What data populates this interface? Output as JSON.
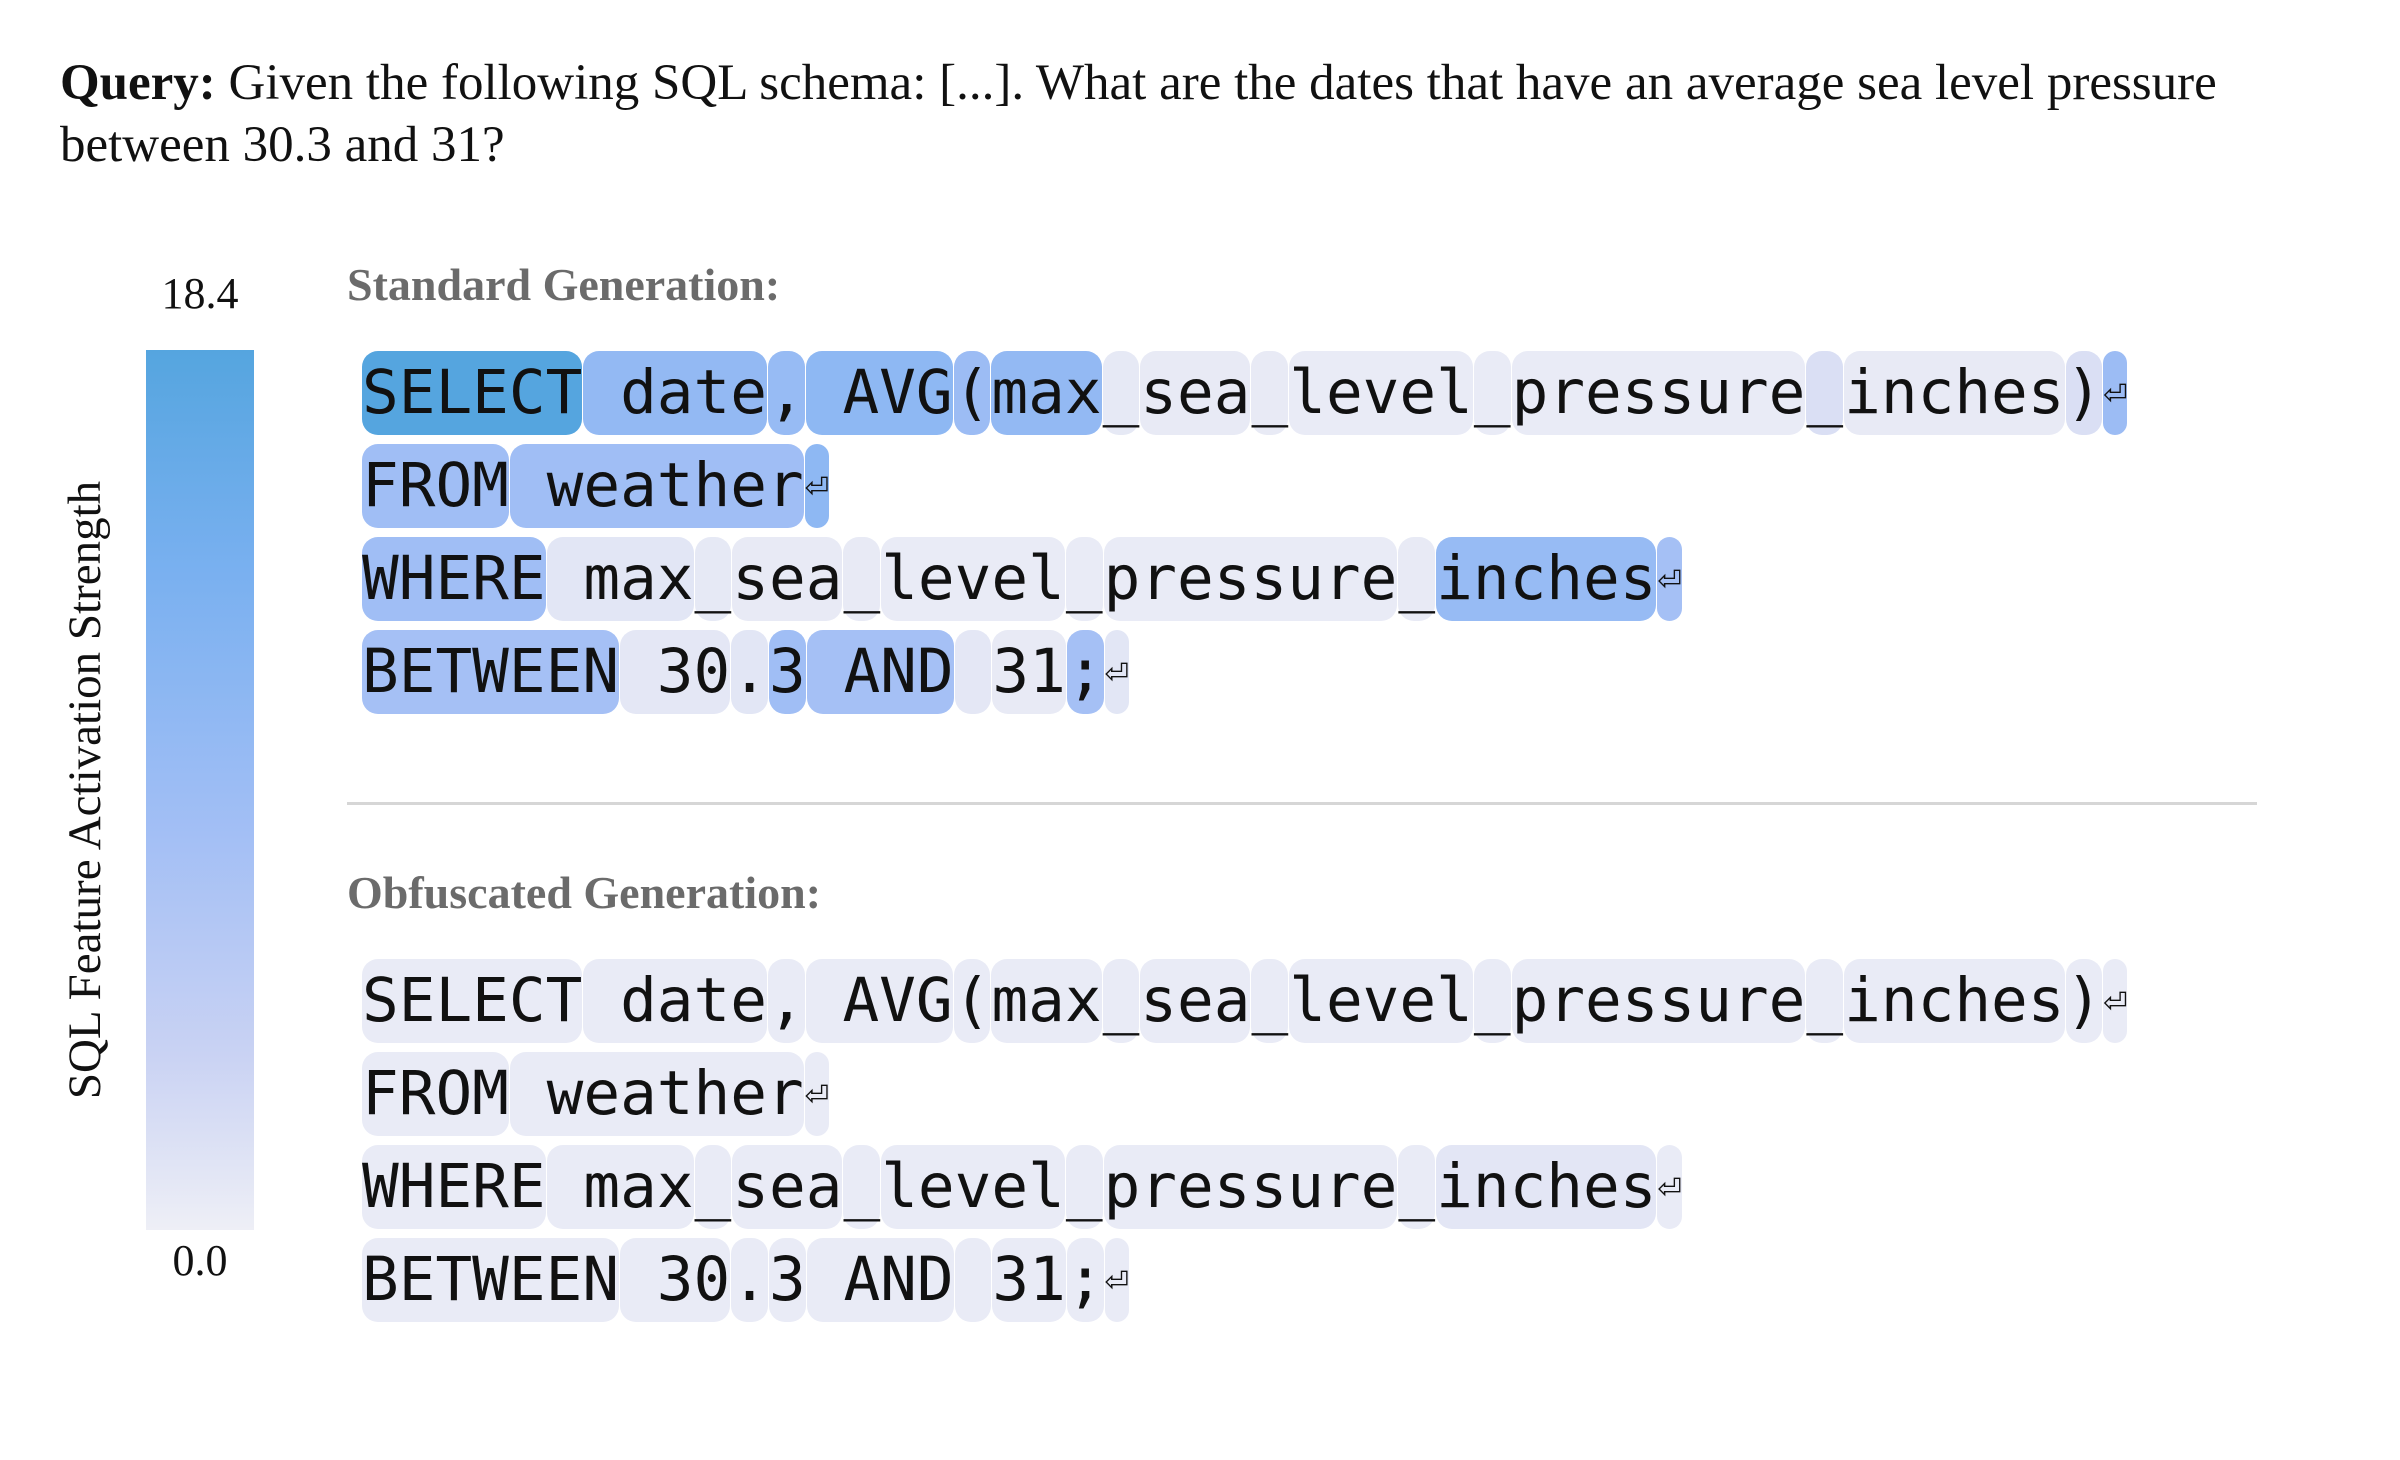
{
  "query": {
    "label": "Query:",
    "text": " Given the following SQL schema: [...]. What are the dates that have an average sea level pressure between 30.3 and 31?"
  },
  "colorbar": {
    "max_label": "18.4",
    "min_label": "0.0",
    "title": "SQL Feature Activation Strength",
    "colors": [
      "#55a5df",
      "#79b0f0",
      "#a3bff5",
      "#c9d2f3",
      "#eeeff6"
    ]
  },
  "standard": {
    "title": "Standard Generation:",
    "lines": [
      [
        [
          "SELECT",
          18.4
        ],
        [
          " date",
          11
        ],
        [
          ",",
          10.5
        ],
        [
          " AVG",
          11.5
        ],
        [
          "(",
          10
        ],
        [
          "max",
          11
        ],
        [
          "_",
          1
        ],
        [
          "sea",
          0.8
        ],
        [
          "_",
          0.8
        ],
        [
          "level",
          0.6
        ],
        [
          "_",
          0.6
        ],
        [
          "pressure",
          0.6
        ],
        [
          "_",
          2.5
        ],
        [
          "inches",
          0.8
        ],
        [
          ")",
          2.5
        ],
        [
          "⏎",
          10
        ]
      ],
      [
        [
          "FROM",
          9.5
        ],
        [
          " weather",
          9.5
        ],
        [
          "⏎",
          11.5
        ]
      ],
      [
        [
          "WHERE",
          9.5
        ],
        [
          " max",
          1.5
        ],
        [
          "_",
          1
        ],
        [
          "sea",
          0.8
        ],
        [
          "_",
          0.8
        ],
        [
          "level",
          0.6
        ],
        [
          "_",
          0.6
        ],
        [
          "pressure",
          0.6
        ],
        [
          "_",
          0.8
        ],
        [
          "inches",
          10.5
        ],
        [
          "⏎",
          9
        ]
      ],
      [
        [
          "BETWEEN",
          9
        ],
        [
          " 30",
          1.2
        ],
        [
          ".",
          1.5
        ],
        [
          "3",
          9.5
        ],
        [
          " AND",
          9
        ],
        [
          " ",
          1.2
        ],
        [
          "31",
          0.8
        ],
        [
          ";",
          9
        ],
        [
          "⏎",
          1.5
        ]
      ]
    ]
  },
  "obfuscated": {
    "title": "Obfuscated Generation:",
    "lines": [
      [
        [
          "SELECT",
          0.6
        ],
        [
          " date",
          0.6
        ],
        [
          ",",
          0.6
        ],
        [
          " AVG",
          0.6
        ],
        [
          "(",
          0.6
        ],
        [
          "max",
          0.6
        ],
        [
          "_",
          0.6
        ],
        [
          "sea",
          0.6
        ],
        [
          "_",
          0.6
        ],
        [
          "level",
          0.6
        ],
        [
          "_",
          0.6
        ],
        [
          "pressure",
          0.6
        ],
        [
          "_",
          0.6
        ],
        [
          "inches",
          0.6
        ],
        [
          ")",
          0.6
        ],
        [
          "⏎",
          0.6
        ]
      ],
      [
        [
          "FROM",
          0.6
        ],
        [
          " weather",
          0.6
        ],
        [
          "⏎",
          0.6
        ]
      ],
      [
        [
          "WHERE",
          0.6
        ],
        [
          " max",
          0.6
        ],
        [
          "_",
          0.6
        ],
        [
          "sea",
          0.6
        ],
        [
          "_",
          0.6
        ],
        [
          "level",
          0.6
        ],
        [
          "_",
          0.6
        ],
        [
          "pressure",
          0.6
        ],
        [
          "_",
          0.6
        ],
        [
          "inches",
          1.4
        ],
        [
          "⏎",
          0.6
        ]
      ],
      [
        [
          "BETWEEN",
          0.6
        ],
        [
          " 30",
          0.6
        ],
        [
          ".",
          0.6
        ],
        [
          "3",
          0.6
        ],
        [
          " AND",
          0.6
        ],
        [
          " ",
          0.6
        ],
        [
          "31",
          0.6
        ],
        [
          ";",
          0.6
        ],
        [
          "⏎",
          0.6
        ]
      ]
    ]
  }
}
